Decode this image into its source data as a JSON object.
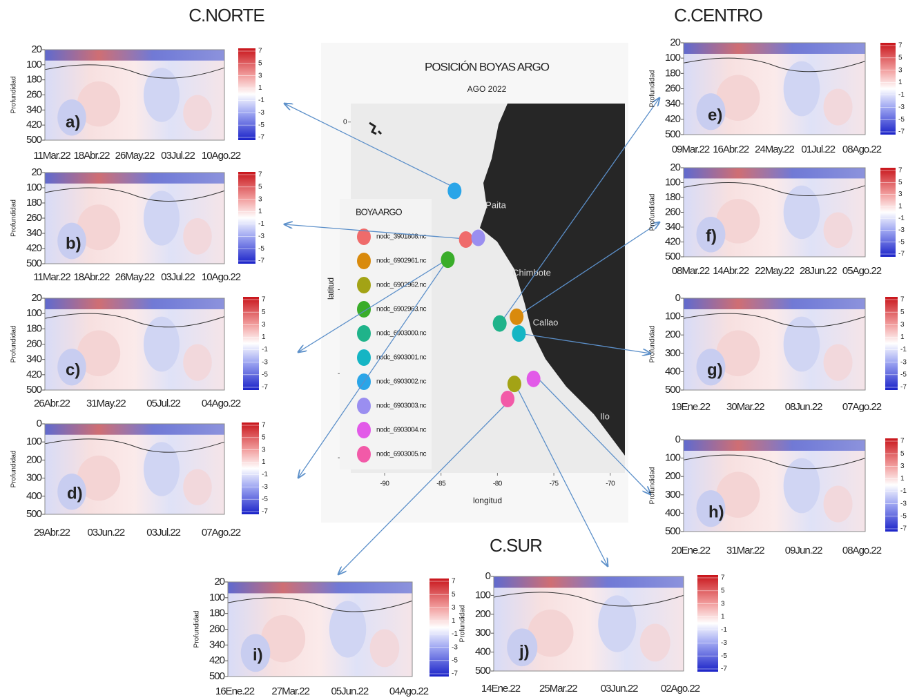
{
  "regions": [
    "C.NORTE",
    "C.CENTRO",
    "C.SUR"
  ],
  "colorbar_ticks": [
    7,
    5,
    3,
    1,
    -1,
    -3,
    -5,
    -7
  ],
  "map": {
    "type": "scatter",
    "title": "POSICIÓN BOYAS ARGO",
    "subtitle": "AGO 2022",
    "xlabel": "longitud",
    "ylabel": "latitud",
    "xlim": [
      -93,
      -68.7
    ],
    "ylim": [
      -20.9,
      1.1
    ],
    "xticks": [
      -90,
      -85,
      -80,
      -75,
      -70
    ],
    "yticks": [
      0,
      -5,
      -10,
      -15,
      -20
    ],
    "places": [
      "Paita",
      "Chimbote",
      "Callao",
      "Ilo"
    ],
    "legend_title": "BOYA ARGO",
    "series": [
      {
        "name": "nodc_3901808.nc",
        "color": "#ef6b6b",
        "x": [
          -82.8
        ],
        "values": [
          -7.0
        ]
      },
      {
        "name": "nodc_6902961.nc",
        "color": "#d98a0c",
        "x": [
          -78.3
        ],
        "values": [
          -11.6
        ]
      },
      {
        "name": "nodc_6902962.nc",
        "color": "#a3a315",
        "x": [
          -78.5
        ],
        "values": [
          -15.6
        ]
      },
      {
        "name": "nodc_6902963.nc",
        "color": "#3aad2a",
        "x": [
          -84.4
        ],
        "values": [
          -8.2
        ]
      },
      {
        "name": "nodc_6903000.nc",
        "color": "#1fb38a",
        "x": [
          -79.8
        ],
        "values": [
          -12.0
        ]
      },
      {
        "name": "nodc_6903001.nc",
        "color": "#15b5c4",
        "x": [
          -78.1
        ],
        "values": [
          -12.6
        ]
      },
      {
        "name": "nodc_6903002.nc",
        "color": "#2aa5e8",
        "x": [
          -83.8
        ],
        "values": [
          -4.1
        ]
      },
      {
        "name": "nodc_6903003.nc",
        "color": "#9a8ef0",
        "x": [
          -81.7
        ],
        "values": [
          -6.9
        ]
      },
      {
        "name": "nodc_6903004.nc",
        "color": "#e25ae8",
        "x": [
          -76.8
        ],
        "values": [
          -15.3
        ]
      },
      {
        "name": "nodc_6903005.nc",
        "color": "#f25aa8",
        "x": [
          -79.1
        ],
        "values": [
          -16.5
        ]
      }
    ]
  },
  "panels": [
    {
      "label": "a)",
      "ylabel": "Profundidad",
      "yticks": [
        20,
        100,
        180,
        260,
        340,
        420,
        500
      ],
      "xticks": [
        "11Mar.22",
        "18Abr.22",
        "26May.22",
        "03Jul.22",
        "10Ago.22"
      ]
    },
    {
      "label": "b)",
      "ylabel": "Profundidad",
      "yticks": [
        20,
        100,
        180,
        260,
        340,
        420,
        500
      ],
      "xticks": [
        "11Mar.22",
        "18Abr.22",
        "26May.22",
        "03Jul.22",
        "10Ago.22"
      ]
    },
    {
      "label": "c)",
      "ylabel": "Profundidad",
      "yticks": [
        20,
        100,
        180,
        260,
        340,
        420,
        500
      ],
      "xticks": [
        "26Abr.22",
        "31May.22",
        "05Jul.22",
        "04Ago.22"
      ]
    },
    {
      "label": "d)",
      "ylabel": "Profundidad",
      "yticks": [
        0,
        100,
        200,
        300,
        400,
        500
      ],
      "xticks": [
        "29Abr.22",
        "03Jun.22",
        "03Jul.22",
        "07Ago.22"
      ]
    },
    {
      "label": "e)",
      "ylabel": "Profundidad",
      "yticks": [
        20,
        100,
        180,
        260,
        340,
        420,
        500
      ],
      "xticks": [
        "09Mar.22",
        "16Abr.22",
        "24May.22",
        "01Jul.22",
        "08Ago.22"
      ]
    },
    {
      "label": "f)",
      "ylabel": "Profundidad",
      "yticks": [
        20,
        100,
        180,
        260,
        340,
        420,
        500
      ],
      "xticks": [
        "08Mar.22",
        "14Abr.22",
        "22May.22",
        "28Jun.22",
        "05Ago.22"
      ]
    },
    {
      "label": "g)",
      "ylabel": "Profundidad",
      "yticks": [
        0,
        100,
        200,
        300,
        400,
        500
      ],
      "xticks": [
        "19Ene.22",
        "30Mar.22",
        "08Jun.22",
        "07Ago.22"
      ]
    },
    {
      "label": "h)",
      "ylabel": "Profundidad",
      "yticks": [
        0,
        100,
        200,
        300,
        400,
        500
      ],
      "xticks": [
        "20Ene.22",
        "31Mar.22",
        "09Jun.22",
        "08Ago.22"
      ]
    },
    {
      "label": "i)",
      "ylabel": "Profundidad",
      "yticks": [
        20,
        100,
        180,
        260,
        340,
        420,
        500
      ],
      "xticks": [
        "16Ene.22",
        "27Mar.22",
        "05Jun.22",
        "04Ago.22"
      ]
    },
    {
      "label": "j)",
      "ylabel": "Profundidad",
      "yticks": [
        0,
        100,
        200,
        300,
        400,
        500
      ],
      "xticks": [
        "14Ene.22",
        "25Mar.22",
        "03Jun.22",
        "02Ago.22"
      ]
    }
  ]
}
